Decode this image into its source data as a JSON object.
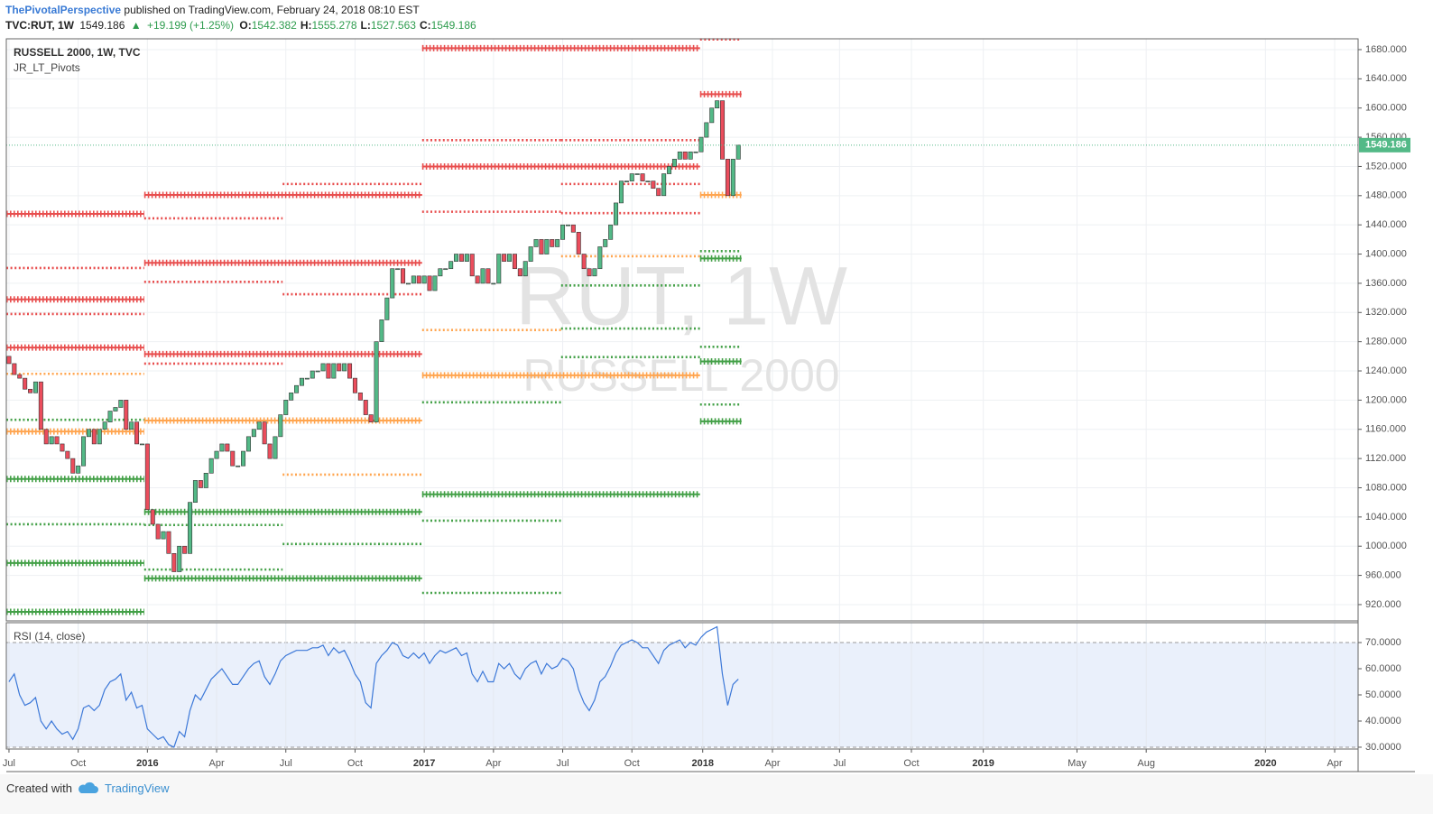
{
  "header": {
    "author": "ThePivotalPerspective",
    "published": "published on TradingView.com, February 24, 2018 08:10 EST",
    "symbol": "TVC:RUT, 1W",
    "last": "1549.186",
    "arrow": "▲",
    "change": "+19.199 (+1.25%)",
    "ohlc": [
      {
        "label": "O:",
        "value": "1542.382"
      },
      {
        "label": "H:",
        "value": "1555.278"
      },
      {
        "label": "L:",
        "value": "1527.563"
      },
      {
        "label": "C:",
        "value": "1549.186"
      }
    ]
  },
  "chart_data": [
    {
      "type": "candlestick",
      "title": "RUSSELL 2000, 1W, TVC",
      "indicator": "JR_LT_Pivots",
      "watermark": "RUT, 1W",
      "watermark_subtitle": "RUSSELL 2000",
      "first_open": 1260,
      "values": [
        1250,
        1235,
        1230,
        1215,
        1210,
        1225,
        1160,
        1140,
        1150,
        1140,
        1130,
        1120,
        1100,
        1110,
        1150,
        1160,
        1140,
        1160,
        1170,
        1185,
        1190,
        1200,
        1160,
        1170,
        1140,
        1140,
        1050,
        1030,
        1010,
        1020,
        990,
        965,
        1000,
        990,
        1060,
        1090,
        1080,
        1100,
        1120,
        1130,
        1140,
        1130,
        1110,
        1110,
        1130,
        1150,
        1160,
        1170,
        1140,
        1120,
        1150,
        1180,
        1200,
        1210,
        1220,
        1230,
        1230,
        1240,
        1240,
        1250,
        1230,
        1250,
        1240,
        1250,
        1230,
        1210,
        1200,
        1180,
        1170,
        1280,
        1310,
        1340,
        1380,
        1380,
        1360,
        1360,
        1370,
        1360,
        1370,
        1350,
        1370,
        1380,
        1380,
        1390,
        1400,
        1390,
        1400,
        1370,
        1360,
        1380,
        1360,
        1360,
        1400,
        1390,
        1400,
        1380,
        1370,
        1390,
        1410,
        1420,
        1400,
        1420,
        1410,
        1420,
        1440,
        1440,
        1430,
        1400,
        1380,
        1370,
        1380,
        1410,
        1420,
        1440,
        1470,
        1500,
        1500,
        1510,
        1510,
        1500,
        1500,
        1490,
        1480,
        1510,
        1520,
        1530,
        1540,
        1530,
        1540,
        1540,
        1560,
        1580,
        1600,
        1610,
        1530,
        1480,
        1530,
        1549.186
      ],
      "up_color": "#53b987",
      "down_color": "#eb4d5c",
      "xlim": [
        -0.5,
        253.4
      ],
      "xticks": [
        {
          "value": 0,
          "label": "Jul"
        },
        {
          "value": 13,
          "label": "Oct"
        },
        {
          "value": 26,
          "label": "2016"
        },
        {
          "value": 39,
          "label": "Apr"
        },
        {
          "value": 52,
          "label": "Jul"
        },
        {
          "value": 65,
          "label": "Oct"
        },
        {
          "value": 78,
          "label": "2017"
        },
        {
          "value": 91,
          "label": "Apr"
        },
        {
          "value": 104,
          "label": "Jul"
        },
        {
          "value": 117,
          "label": "Oct"
        },
        {
          "value": 130.3,
          "label": "2018"
        },
        {
          "value": 143.4,
          "label": "Apr"
        },
        {
          "value": 156,
          "label": "Jul"
        },
        {
          "value": 169.5,
          "label": "Oct"
        },
        {
          "value": 183,
          "label": "2019"
        },
        {
          "value": 200.6,
          "label": "May"
        },
        {
          "value": 213.6,
          "label": "Aug"
        },
        {
          "value": 236,
          "label": "2020"
        },
        {
          "value": 249,
          "label": "Apr"
        }
      ],
      "ylim": [
        897.7,
        1694.8
      ],
      "yticks": [
        {
          "value": 920,
          "label": "920.000"
        },
        {
          "value": 960,
          "label": "960.000"
        },
        {
          "value": 1000,
          "label": "1000.000"
        },
        {
          "value": 1040,
          "label": "1040.000"
        },
        {
          "value": 1080,
          "label": "1080.000"
        },
        {
          "value": 1120,
          "label": "1120.000"
        },
        {
          "value": 1160,
          "label": "1160.000"
        },
        {
          "value": 1200,
          "label": "1200.000"
        },
        {
          "value": 1240,
          "label": "1240.000"
        },
        {
          "value": 1280,
          "label": "1280.000"
        },
        {
          "value": 1320,
          "label": "1320.000"
        },
        {
          "value": 1360,
          "label": "1360.000"
        },
        {
          "value": 1400,
          "label": "1400.000"
        },
        {
          "value": 1440,
          "label": "1440.000"
        },
        {
          "value": 1480,
          "label": "1480.000"
        },
        {
          "value": 1520,
          "label": "1520.000"
        },
        {
          "value": 1560,
          "label": "1560.000"
        },
        {
          "value": 1600,
          "label": "1600.000"
        },
        {
          "value": 1640,
          "label": "1640.000"
        },
        {
          "value": 1680,
          "label": "1680.000"
        }
      ],
      "grid": true,
      "last_price_color": "#53b987",
      "pivots": [
        {
          "from": -0.5,
          "to": 25.4,
          "level": 1455,
          "color": "#e84e4e",
          "weight": "thick"
        },
        {
          "from": -0.5,
          "to": 25.4,
          "level": 1381,
          "color": "#e84e4e",
          "weight": "thin"
        },
        {
          "from": -0.5,
          "to": 25.4,
          "level": 1338,
          "color": "#e84e4e",
          "weight": "thick"
        },
        {
          "from": -0.5,
          "to": 25.4,
          "level": 1318,
          "color": "#e84e4e",
          "weight": "thin"
        },
        {
          "from": -0.5,
          "to": 25.4,
          "level": 1272,
          "color": "#e84e4e",
          "weight": "thick"
        },
        {
          "from": -0.5,
          "to": 25.4,
          "level": 1236,
          "color": "#ffa54f",
          "weight": "thin"
        },
        {
          "from": -0.5,
          "to": 25.4,
          "level": 1173,
          "color": "#43a047",
          "weight": "thin"
        },
        {
          "from": -0.5,
          "to": 25.4,
          "level": 1157,
          "color": "#ffa54f",
          "weight": "thick"
        },
        {
          "from": -0.5,
          "to": 25.4,
          "level": 1092,
          "color": "#43a047",
          "weight": "thick"
        },
        {
          "from": -0.5,
          "to": 25.4,
          "level": 1030,
          "color": "#43a047",
          "weight": "thin"
        },
        {
          "from": -0.5,
          "to": 25.4,
          "level": 977,
          "color": "#43a047",
          "weight": "thick"
        },
        {
          "from": -0.5,
          "to": 25.4,
          "level": 910,
          "color": "#43a047",
          "weight": "thick"
        },
        {
          "from": 25.4,
          "to": 77.6,
          "level": 1481,
          "color": "#e84e4e",
          "weight": "thick"
        },
        {
          "from": 25.4,
          "to": 77.6,
          "level": 1388,
          "color": "#e84e4e",
          "weight": "thick"
        },
        {
          "from": 25.4,
          "to": 77.6,
          "level": 1263,
          "color": "#e84e4e",
          "weight": "thick"
        },
        {
          "from": 25.4,
          "to": 77.6,
          "level": 1172,
          "color": "#ffa54f",
          "weight": "thick"
        },
        {
          "from": 25.4,
          "to": 77.6,
          "level": 1047,
          "color": "#43a047",
          "weight": "thick"
        },
        {
          "from": 25.4,
          "to": 77.6,
          "level": 956,
          "color": "#43a047",
          "weight": "thick"
        },
        {
          "from": 25.4,
          "to": 51.4,
          "level": 1449,
          "color": "#e84e4e",
          "weight": "thin"
        },
        {
          "from": 25.4,
          "to": 51.4,
          "level": 1362,
          "color": "#e84e4e",
          "weight": "thin"
        },
        {
          "from": 25.4,
          "to": 51.4,
          "level": 1250,
          "color": "#e84e4e",
          "weight": "thin"
        },
        {
          "from": 25.4,
          "to": 51.4,
          "level": 1029,
          "color": "#43a047",
          "weight": "thin"
        },
        {
          "from": 25.4,
          "to": 51.4,
          "level": 968,
          "color": "#43a047",
          "weight": "thin"
        },
        {
          "from": 51.4,
          "to": 77.6,
          "level": 1496,
          "color": "#e84e4e",
          "weight": "thin"
        },
        {
          "from": 51.4,
          "to": 77.6,
          "level": 1345,
          "color": "#e84e4e",
          "weight": "thin"
        },
        {
          "from": 51.4,
          "to": 77.6,
          "level": 1098,
          "color": "#ffa54f",
          "weight": "thin"
        },
        {
          "from": 51.4,
          "to": 77.6,
          "level": 1003,
          "color": "#43a047",
          "weight": "thin"
        },
        {
          "from": 77.6,
          "to": 129.8,
          "level": 1682,
          "color": "#e84e4e",
          "weight": "thick"
        },
        {
          "from": 77.6,
          "to": 129.8,
          "level": 1520,
          "color": "#e84e4e",
          "weight": "thick"
        },
        {
          "from": 77.6,
          "to": 129.8,
          "level": 1234,
          "color": "#ffa54f",
          "weight": "thick"
        },
        {
          "from": 77.6,
          "to": 129.8,
          "level": 1071,
          "color": "#43a047",
          "weight": "thick"
        },
        {
          "from": 77.6,
          "to": 103.7,
          "level": 1556,
          "color": "#e84e4e",
          "weight": "thin"
        },
        {
          "from": 77.6,
          "to": 103.7,
          "level": 1458,
          "color": "#e84e4e",
          "weight": "thin"
        },
        {
          "from": 77.6,
          "to": 103.7,
          "level": 1296,
          "color": "#ffa54f",
          "weight": "thin"
        },
        {
          "from": 77.6,
          "to": 103.7,
          "level": 1197,
          "color": "#43a047",
          "weight": "thin"
        },
        {
          "from": 77.6,
          "to": 103.7,
          "level": 1035,
          "color": "#43a047",
          "weight": "thin"
        },
        {
          "from": 77.6,
          "to": 103.7,
          "level": 936,
          "color": "#43a047",
          "weight": "thin"
        },
        {
          "from": 103.7,
          "to": 129.8,
          "level": 1556,
          "color": "#e84e4e",
          "weight": "thin"
        },
        {
          "from": 103.7,
          "to": 129.8,
          "level": 1496,
          "color": "#e84e4e",
          "weight": "thin"
        },
        {
          "from": 103.7,
          "to": 129.8,
          "level": 1456,
          "color": "#e84e4e",
          "weight": "thin"
        },
        {
          "from": 103.7,
          "to": 129.8,
          "level": 1397,
          "color": "#ffa54f",
          "weight": "thin"
        },
        {
          "from": 103.7,
          "to": 129.8,
          "level": 1357,
          "color": "#43a047",
          "weight": "thin"
        },
        {
          "from": 103.7,
          "to": 129.8,
          "level": 1298,
          "color": "#43a047",
          "weight": "thin"
        },
        {
          "from": 103.7,
          "to": 129.8,
          "level": 1259,
          "color": "#43a047",
          "weight": "thin"
        },
        {
          "from": 129.8,
          "to": 137.6,
          "level": 1694,
          "color": "#e84e4e",
          "weight": "thin"
        },
        {
          "from": 129.8,
          "to": 137.6,
          "level": 1619,
          "color": "#e84e4e",
          "weight": "thick"
        },
        {
          "from": 129.8,
          "to": 137.6,
          "level": 1481,
          "color": "#ffa54f",
          "weight": "thick"
        },
        {
          "from": 129.8,
          "to": 137.6,
          "level": 1404,
          "color": "#43a047",
          "weight": "thin"
        },
        {
          "from": 129.8,
          "to": 137.6,
          "level": 1394,
          "color": "#43a047",
          "weight": "thick"
        },
        {
          "from": 129.8,
          "to": 137.6,
          "level": 1273,
          "color": "#43a047",
          "weight": "thin"
        },
        {
          "from": 129.8,
          "to": 137.6,
          "level": 1253,
          "color": "#43a047",
          "weight": "thick"
        },
        {
          "from": 129.8,
          "to": 137.6,
          "level": 1194,
          "color": "#43a047",
          "weight": "thin"
        },
        {
          "from": 129.8,
          "to": 137.6,
          "level": 1171,
          "color": "#43a047",
          "weight": "thick"
        }
      ]
    },
    {
      "type": "line",
      "title": "RSI (14, close)",
      "color": "#3c78d8",
      "values": [
        55,
        58,
        50,
        46,
        47,
        49,
        40,
        37,
        40,
        37,
        35,
        36,
        33,
        37,
        45,
        46,
        44,
        46,
        52,
        55,
        56,
        58,
        48,
        51,
        45,
        46,
        37,
        35,
        33,
        34,
        31,
        30,
        36,
        34,
        44,
        50,
        48,
        52,
        56,
        58,
        60,
        57,
        54,
        54,
        57,
        60,
        62,
        63,
        57,
        54,
        58,
        63,
        65,
        66,
        67,
        67,
        67,
        68,
        68,
        69,
        65,
        68,
        66,
        67,
        63,
        58,
        55,
        47,
        45,
        62,
        65,
        67,
        70,
        69,
        65,
        64,
        66,
        64,
        66,
        62,
        65,
        67,
        66,
        67,
        68,
        65,
        66,
        58,
        55,
        59,
        55,
        55,
        62,
        60,
        62,
        58,
        56,
        60,
        62,
        63,
        58,
        62,
        60,
        61,
        64,
        63,
        60,
        52,
        47,
        44,
        48,
        55,
        57,
        61,
        66,
        69,
        70,
        71,
        70,
        68,
        68,
        65,
        62,
        67,
        69,
        70,
        71,
        68,
        70,
        69,
        72,
        74,
        75,
        76,
        58,
        46,
        54,
        56
      ],
      "ylim": [
        29.3,
        77.6
      ],
      "yticks": [
        {
          "value": 30,
          "label": "30.0000"
        },
        {
          "value": 40,
          "label": "40.0000"
        },
        {
          "value": 50,
          "label": "50.0000"
        },
        {
          "value": 60,
          "label": "60.0000"
        },
        {
          "value": 70,
          "label": "70.0000"
        }
      ],
      "band": [
        30,
        70
      ],
      "band_color": "#eaf0fb"
    }
  ],
  "footer": {
    "created": "Created with",
    "brand": "TradingView"
  }
}
